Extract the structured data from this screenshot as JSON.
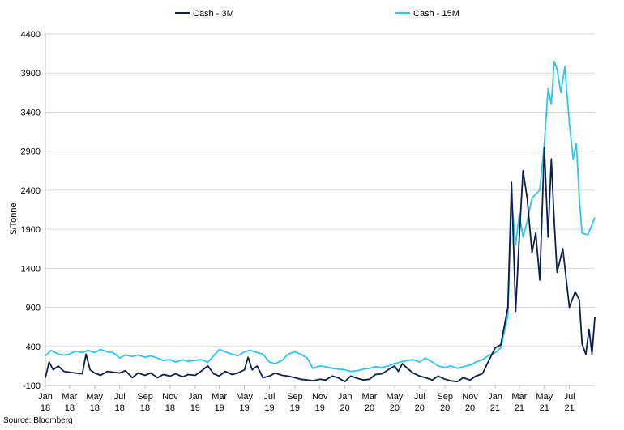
{
  "chart_data": {
    "type": "line",
    "title": "",
    "xlabel": "",
    "ylabel": "$/Tonne",
    "ylim": [
      -100,
      4400
    ],
    "yticks": [
      -100,
      400,
      900,
      1400,
      1900,
      2400,
      2900,
      3400,
      3900,
      4400
    ],
    "grid": true,
    "legend_position": "top",
    "xlim": [
      "2018-01",
      "2021-09"
    ],
    "xticks": [
      {
        "month": "Jan",
        "year": "18",
        "pos": "2018-01"
      },
      {
        "month": "Mar",
        "year": "18",
        "pos": "2018-03"
      },
      {
        "month": "May",
        "year": "18",
        "pos": "2018-05"
      },
      {
        "month": "Jul",
        "year": "18",
        "pos": "2018-07"
      },
      {
        "month": "Sep",
        "year": "18",
        "pos": "2018-09"
      },
      {
        "month": "Nov",
        "year": "18",
        "pos": "2018-11"
      },
      {
        "month": "Jan",
        "year": "19",
        "pos": "2019-01"
      },
      {
        "month": "Mar",
        "year": "19",
        "pos": "2019-03"
      },
      {
        "month": "May",
        "year": "19",
        "pos": "2019-05"
      },
      {
        "month": "Jul",
        "year": "19",
        "pos": "2019-07"
      },
      {
        "month": "Sep",
        "year": "19",
        "pos": "2019-09"
      },
      {
        "month": "Nov",
        "year": "19",
        "pos": "2019-11"
      },
      {
        "month": "Jan",
        "year": "20",
        "pos": "2020-01"
      },
      {
        "month": "Mar",
        "year": "20",
        "pos": "2020-03"
      },
      {
        "month": "May",
        "year": "20",
        "pos": "2020-05"
      },
      {
        "month": "Jul",
        "year": "20",
        "pos": "2020-07"
      },
      {
        "month": "Sep",
        "year": "20",
        "pos": "2020-09"
      },
      {
        "month": "Nov",
        "year": "20",
        "pos": "2020-11"
      },
      {
        "month": "Jan",
        "year": "21",
        "pos": "2021-01"
      },
      {
        "month": "Mar",
        "year": "21",
        "pos": "2021-03"
      },
      {
        "month": "May",
        "year": "21",
        "pos": "2021-05"
      },
      {
        "month": "Jul",
        "year": "21",
        "pos": "2021-07"
      }
    ],
    "series": [
      {
        "name": "Cash - 3M",
        "color": "#0f1f4b",
        "points": [
          [
            "2018-01-01",
            0
          ],
          [
            "2018-01-10",
            200
          ],
          [
            "2018-01-20",
            100
          ],
          [
            "2018-02-01",
            150
          ],
          [
            "2018-02-15",
            80
          ],
          [
            "2018-03-01",
            70
          ],
          [
            "2018-03-15",
            60
          ],
          [
            "2018-04-01",
            50
          ],
          [
            "2018-04-10",
            300
          ],
          [
            "2018-04-20",
            100
          ],
          [
            "2018-05-01",
            60
          ],
          [
            "2018-05-15",
            30
          ],
          [
            "2018-06-01",
            80
          ],
          [
            "2018-06-15",
            70
          ],
          [
            "2018-07-01",
            60
          ],
          [
            "2018-07-15",
            90
          ],
          [
            "2018-08-01",
            0
          ],
          [
            "2018-08-15",
            60
          ],
          [
            "2018-09-01",
            30
          ],
          [
            "2018-09-15",
            60
          ],
          [
            "2018-10-01",
            0
          ],
          [
            "2018-10-15",
            40
          ],
          [
            "2018-11-01",
            20
          ],
          [
            "2018-11-15",
            50
          ],
          [
            "2018-12-01",
            10
          ],
          [
            "2018-12-15",
            40
          ],
          [
            "2019-01-01",
            30
          ],
          [
            "2019-01-15",
            80
          ],
          [
            "2019-02-01",
            150
          ],
          [
            "2019-02-15",
            50
          ],
          [
            "2019-03-01",
            20
          ],
          [
            "2019-03-15",
            80
          ],
          [
            "2019-04-01",
            40
          ],
          [
            "2019-04-15",
            60
          ],
          [
            "2019-05-01",
            100
          ],
          [
            "2019-05-10",
            260
          ],
          [
            "2019-05-20",
            100
          ],
          [
            "2019-06-01",
            150
          ],
          [
            "2019-06-15",
            0
          ],
          [
            "2019-07-01",
            20
          ],
          [
            "2019-07-15",
            60
          ],
          [
            "2019-08-01",
            30
          ],
          [
            "2019-08-15",
            20
          ],
          [
            "2019-09-01",
            0
          ],
          [
            "2019-09-15",
            -20
          ],
          [
            "2019-10-01",
            -30
          ],
          [
            "2019-10-15",
            -40
          ],
          [
            "2019-11-01",
            -20
          ],
          [
            "2019-11-15",
            -30
          ],
          [
            "2019-12-01",
            20
          ],
          [
            "2019-12-15",
            0
          ],
          [
            "2020-01-01",
            -50
          ],
          [
            "2020-01-15",
            20
          ],
          [
            "2020-02-01",
            -10
          ],
          [
            "2020-02-15",
            -30
          ],
          [
            "2020-03-01",
            -20
          ],
          [
            "2020-03-15",
            40
          ],
          [
            "2020-04-01",
            50
          ],
          [
            "2020-04-15",
            100
          ],
          [
            "2020-05-01",
            150
          ],
          [
            "2020-05-10",
            80
          ],
          [
            "2020-05-20",
            180
          ],
          [
            "2020-06-01",
            120
          ],
          [
            "2020-06-15",
            60
          ],
          [
            "2020-07-01",
            20
          ],
          [
            "2020-07-15",
            0
          ],
          [
            "2020-08-01",
            -30
          ],
          [
            "2020-08-15",
            20
          ],
          [
            "2020-09-01",
            -20
          ],
          [
            "2020-09-15",
            -40
          ],
          [
            "2020-10-01",
            -50
          ],
          [
            "2020-10-15",
            0
          ],
          [
            "2020-11-01",
            -30
          ],
          [
            "2020-11-15",
            20
          ],
          [
            "2020-12-01",
            50
          ],
          [
            "2020-12-15",
            200
          ],
          [
            "2021-01-01",
            380
          ],
          [
            "2021-01-15",
            420
          ],
          [
            "2021-02-01",
            900
          ],
          [
            "2021-02-10",
            2500
          ],
          [
            "2021-02-20",
            850
          ],
          [
            "2021-03-01",
            1800
          ],
          [
            "2021-03-10",
            2650
          ],
          [
            "2021-03-20",
            2300
          ],
          [
            "2021-04-01",
            1600
          ],
          [
            "2021-04-10",
            1850
          ],
          [
            "2021-04-20",
            1250
          ],
          [
            "2021-05-01",
            2950
          ],
          [
            "2021-05-10",
            1800
          ],
          [
            "2021-05-18",
            2800
          ],
          [
            "2021-05-25",
            2000
          ],
          [
            "2021-06-01",
            1350
          ],
          [
            "2021-06-15",
            1650
          ],
          [
            "2021-07-01",
            900
          ],
          [
            "2021-07-15",
            1100
          ],
          [
            "2021-07-25",
            1000
          ],
          [
            "2021-08-01",
            430
          ],
          [
            "2021-08-10",
            300
          ],
          [
            "2021-08-18",
            620
          ],
          [
            "2021-08-25",
            300
          ],
          [
            "2021-09-01",
            770
          ]
        ]
      },
      {
        "name": "Cash - 15M",
        "color": "#2fc6ee",
        "points": [
          [
            "2018-01-01",
            280
          ],
          [
            "2018-01-15",
            350
          ],
          [
            "2018-02-01",
            300
          ],
          [
            "2018-02-15",
            290
          ],
          [
            "2018-03-01",
            300
          ],
          [
            "2018-03-15",
            340
          ],
          [
            "2018-04-01",
            320
          ],
          [
            "2018-04-15",
            350
          ],
          [
            "2018-05-01",
            320
          ],
          [
            "2018-05-15",
            360
          ],
          [
            "2018-06-01",
            330
          ],
          [
            "2018-06-15",
            320
          ],
          [
            "2018-07-01",
            250
          ],
          [
            "2018-07-15",
            290
          ],
          [
            "2018-08-01",
            270
          ],
          [
            "2018-08-15",
            290
          ],
          [
            "2018-09-01",
            260
          ],
          [
            "2018-09-15",
            280
          ],
          [
            "2018-10-01",
            250
          ],
          [
            "2018-10-15",
            220
          ],
          [
            "2018-11-01",
            230
          ],
          [
            "2018-11-15",
            200
          ],
          [
            "2018-12-01",
            230
          ],
          [
            "2018-12-15",
            210
          ],
          [
            "2019-01-01",
            220
          ],
          [
            "2019-01-15",
            230
          ],
          [
            "2019-02-01",
            200
          ],
          [
            "2019-02-15",
            280
          ],
          [
            "2019-03-01",
            360
          ],
          [
            "2019-03-15",
            330
          ],
          [
            "2019-04-01",
            300
          ],
          [
            "2019-04-15",
            280
          ],
          [
            "2019-05-01",
            330
          ],
          [
            "2019-05-15",
            350
          ],
          [
            "2019-06-01",
            320
          ],
          [
            "2019-06-15",
            300
          ],
          [
            "2019-07-01",
            200
          ],
          [
            "2019-07-15",
            180
          ],
          [
            "2019-08-01",
            220
          ],
          [
            "2019-08-15",
            300
          ],
          [
            "2019-09-01",
            330
          ],
          [
            "2019-09-15",
            300
          ],
          [
            "2019-10-01",
            250
          ],
          [
            "2019-10-15",
            120
          ],
          [
            "2019-11-01",
            150
          ],
          [
            "2019-11-15",
            140
          ],
          [
            "2019-12-01",
            120
          ],
          [
            "2019-12-15",
            110
          ],
          [
            "2020-01-01",
            100
          ],
          [
            "2020-01-15",
            80
          ],
          [
            "2020-02-01",
            90
          ],
          [
            "2020-02-15",
            110
          ],
          [
            "2020-03-01",
            120
          ],
          [
            "2020-03-15",
            140
          ],
          [
            "2020-04-01",
            130
          ],
          [
            "2020-04-15",
            150
          ],
          [
            "2020-05-01",
            180
          ],
          [
            "2020-05-15",
            200
          ],
          [
            "2020-06-01",
            220
          ],
          [
            "2020-06-15",
            230
          ],
          [
            "2020-07-01",
            200
          ],
          [
            "2020-07-15",
            250
          ],
          [
            "2020-08-01",
            200
          ],
          [
            "2020-08-15",
            150
          ],
          [
            "2020-09-01",
            130
          ],
          [
            "2020-09-15",
            150
          ],
          [
            "2020-10-01",
            120
          ],
          [
            "2020-10-15",
            140
          ],
          [
            "2020-11-01",
            160
          ],
          [
            "2020-11-15",
            200
          ],
          [
            "2020-12-01",
            230
          ],
          [
            "2020-12-15",
            280
          ],
          [
            "2021-01-01",
            320
          ],
          [
            "2021-01-15",
            380
          ],
          [
            "2021-02-01",
            800
          ],
          [
            "2021-02-10",
            2300
          ],
          [
            "2021-02-20",
            1700
          ],
          [
            "2021-03-01",
            2100
          ],
          [
            "2021-03-10",
            1800
          ],
          [
            "2021-03-20",
            2000
          ],
          [
            "2021-04-01",
            2300
          ],
          [
            "2021-04-10",
            2350
          ],
          [
            "2021-04-20",
            2400
          ],
          [
            "2021-05-01",
            3000
          ],
          [
            "2021-05-10",
            3700
          ],
          [
            "2021-05-18",
            3500
          ],
          [
            "2021-05-25",
            4050
          ],
          [
            "2021-06-01",
            3950
          ],
          [
            "2021-06-10",
            3650
          ],
          [
            "2021-06-20",
            3980
          ],
          [
            "2021-07-01",
            3250
          ],
          [
            "2021-07-10",
            2800
          ],
          [
            "2021-07-18",
            3000
          ],
          [
            "2021-07-25",
            2300
          ],
          [
            "2021-08-01",
            1850
          ],
          [
            "2021-08-15",
            1830
          ],
          [
            "2021-09-01",
            2050
          ]
        ]
      }
    ]
  },
  "source_text": "Source: Bloomberg"
}
